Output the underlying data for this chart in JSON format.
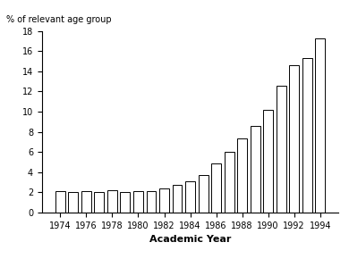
{
  "years": [
    1974,
    1975,
    1976,
    1977,
    1978,
    1979,
    1980,
    1981,
    1982,
    1983,
    1984,
    1985,
    1986,
    1987,
    1988,
    1989,
    1990,
    1991,
    1992,
    1993,
    1994
  ],
  "values": [
    2.1,
    2.0,
    2.1,
    2.0,
    2.2,
    2.0,
    2.1,
    2.1,
    2.4,
    2.7,
    3.1,
    3.7,
    4.9,
    6.0,
    7.3,
    8.6,
    10.2,
    12.6,
    14.6,
    15.3,
    17.3
  ],
  "ylabel": "% of relevant age group",
  "xlabel": "Academic Year",
  "ylim": [
    0,
    18
  ],
  "yticks": [
    0,
    2,
    4,
    6,
    8,
    10,
    12,
    14,
    16,
    18
  ],
  "xticks": [
    1974,
    1976,
    1978,
    1980,
    1982,
    1984,
    1986,
    1988,
    1990,
    1992,
    1994
  ],
  "bar_color": "#ffffff",
  "bar_edgecolor": "#000000",
  "background_color": "#ffffff",
  "plot_bg_color": "#ffffff"
}
